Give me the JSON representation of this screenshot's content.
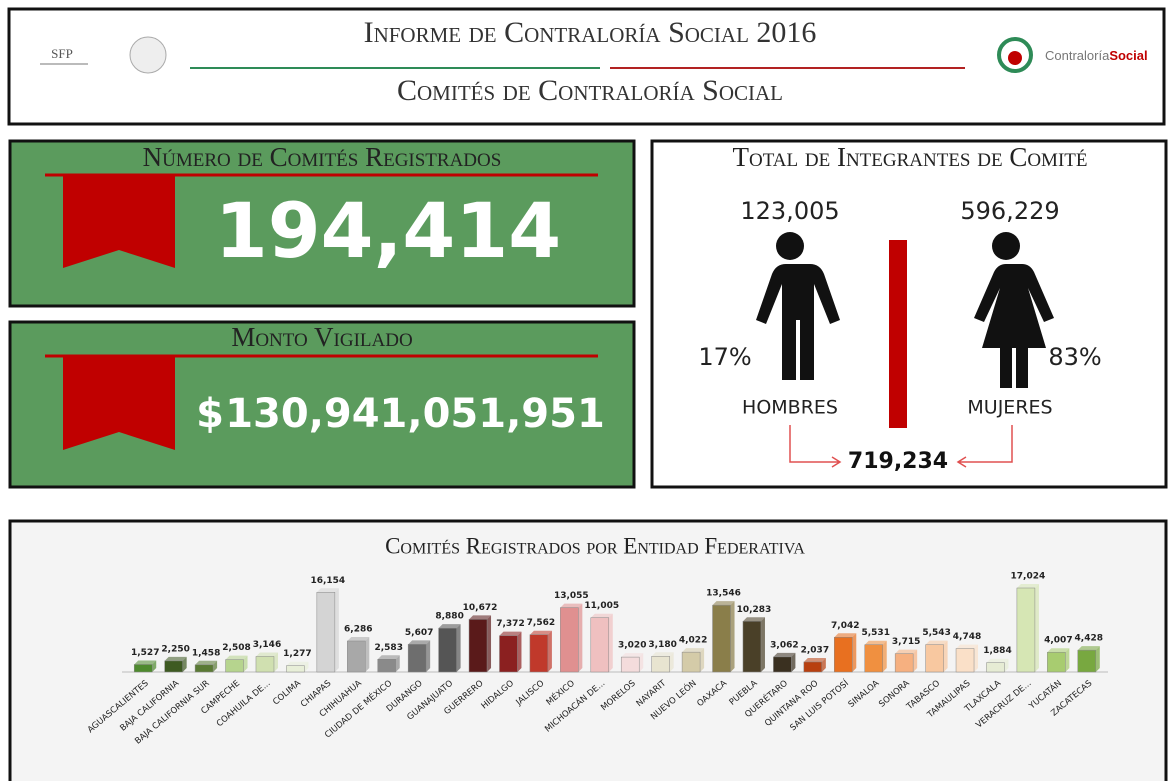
{
  "header": {
    "logo_left": "SFP",
    "title": "Informe de Contraloría Social 2016",
    "subtitle": "Comités de Contraloría Social",
    "logo_right_a": "Contraloría",
    "logo_right_b": "Social"
  },
  "panels": {
    "committees": {
      "title": "Número de Comités Registrados",
      "value": "194,414"
    },
    "amount": {
      "title": "Monto Vigilado",
      "currency": "$",
      "value": "130,941,051,951"
    },
    "members": {
      "title": "Total de Integrantes de Comité",
      "men_count": "123,005",
      "women_count": "596,229",
      "men_pct": "17%",
      "women_pct": "83%",
      "men_label": "HOMBRES",
      "women_label": "MUJERES",
      "total": "719,234"
    }
  },
  "chart_data": {
    "type": "bar",
    "title": "Comités Registrados por Entidad Federativa",
    "categories": [
      "AGUASCALIENTES",
      "BAJA CALIFORNIA",
      "BAJA CALIFORNIA SUR",
      "CAMPECHE",
      "COAHUILA DE...",
      "COLIMA",
      "CHIAPAS",
      "CHIHUAHUA",
      "CIUDAD DE MÉXICO",
      "DURANGO",
      "GUANAJUATO",
      "GUERRERO",
      "HIDALGO",
      "JALISCO",
      "MÉXICO",
      "MICHOACÁN DE...",
      "MORELOS",
      "NAYARIT",
      "NUEVO LEÓN",
      "OAXACA",
      "PUEBLA",
      "QUERÉTARO",
      "QUINTANA ROO",
      "SAN LUIS POTOSÍ",
      "SINALOA",
      "SONORA",
      "TABASCO",
      "TAMAULIPAS",
      "TLAXCALA",
      "VERACRUZ DE...",
      "YUCATÁN",
      "ZACATECAS"
    ],
    "values": [
      1527,
      2250,
      1458,
      2508,
      3146,
      1277,
      16154,
      6286,
      2583,
      5607,
      8880,
      10672,
      7372,
      7562,
      13055,
      11005,
      3020,
      3180,
      4022,
      13546,
      10283,
      3062,
      2037,
      7042,
      5531,
      3715,
      5543,
      4748,
      1884,
      17024,
      4007,
      4428
    ],
    "value_labels": [
      "1,527",
      "2,250",
      "1,458",
      "2,508",
      "3,146",
      "1,277",
      "16,154",
      "6,286",
      "2,583",
      "5,607",
      "8,880",
      "10,672",
      "7,372",
      "7,562",
      "13,055",
      "11,005",
      "3,020",
      "3,180",
      "4,022",
      "13,546",
      "10,283",
      "3,062",
      "2,037",
      "7,042",
      "5,531",
      "3,715",
      "5,543",
      "4,748",
      "1,884",
      "17,024",
      "4,007",
      "4,428"
    ],
    "colors": [
      "#4e8a2e",
      "#3e5a22",
      "#5a7a34",
      "#b6d48e",
      "#d0e0b0",
      "#e8efd8",
      "#d4d4d4",
      "#a8a8a8",
      "#8a8a8a",
      "#6e6e6e",
      "#555555",
      "#5a1a1a",
      "#8b2020",
      "#c0392b",
      "#e09090",
      "#efc0c0",
      "#f4dcdc",
      "#e8e4d0",
      "#d4cba8",
      "#8a7e4a",
      "#4a4028",
      "#3a3020",
      "#b84010",
      "#e87020",
      "#f09040",
      "#f6b080",
      "#f8c8a0",
      "#fae0c8",
      "#e6ecd4",
      "#d6e6b4",
      "#a8cc70",
      "#78a840"
    ]
  }
}
